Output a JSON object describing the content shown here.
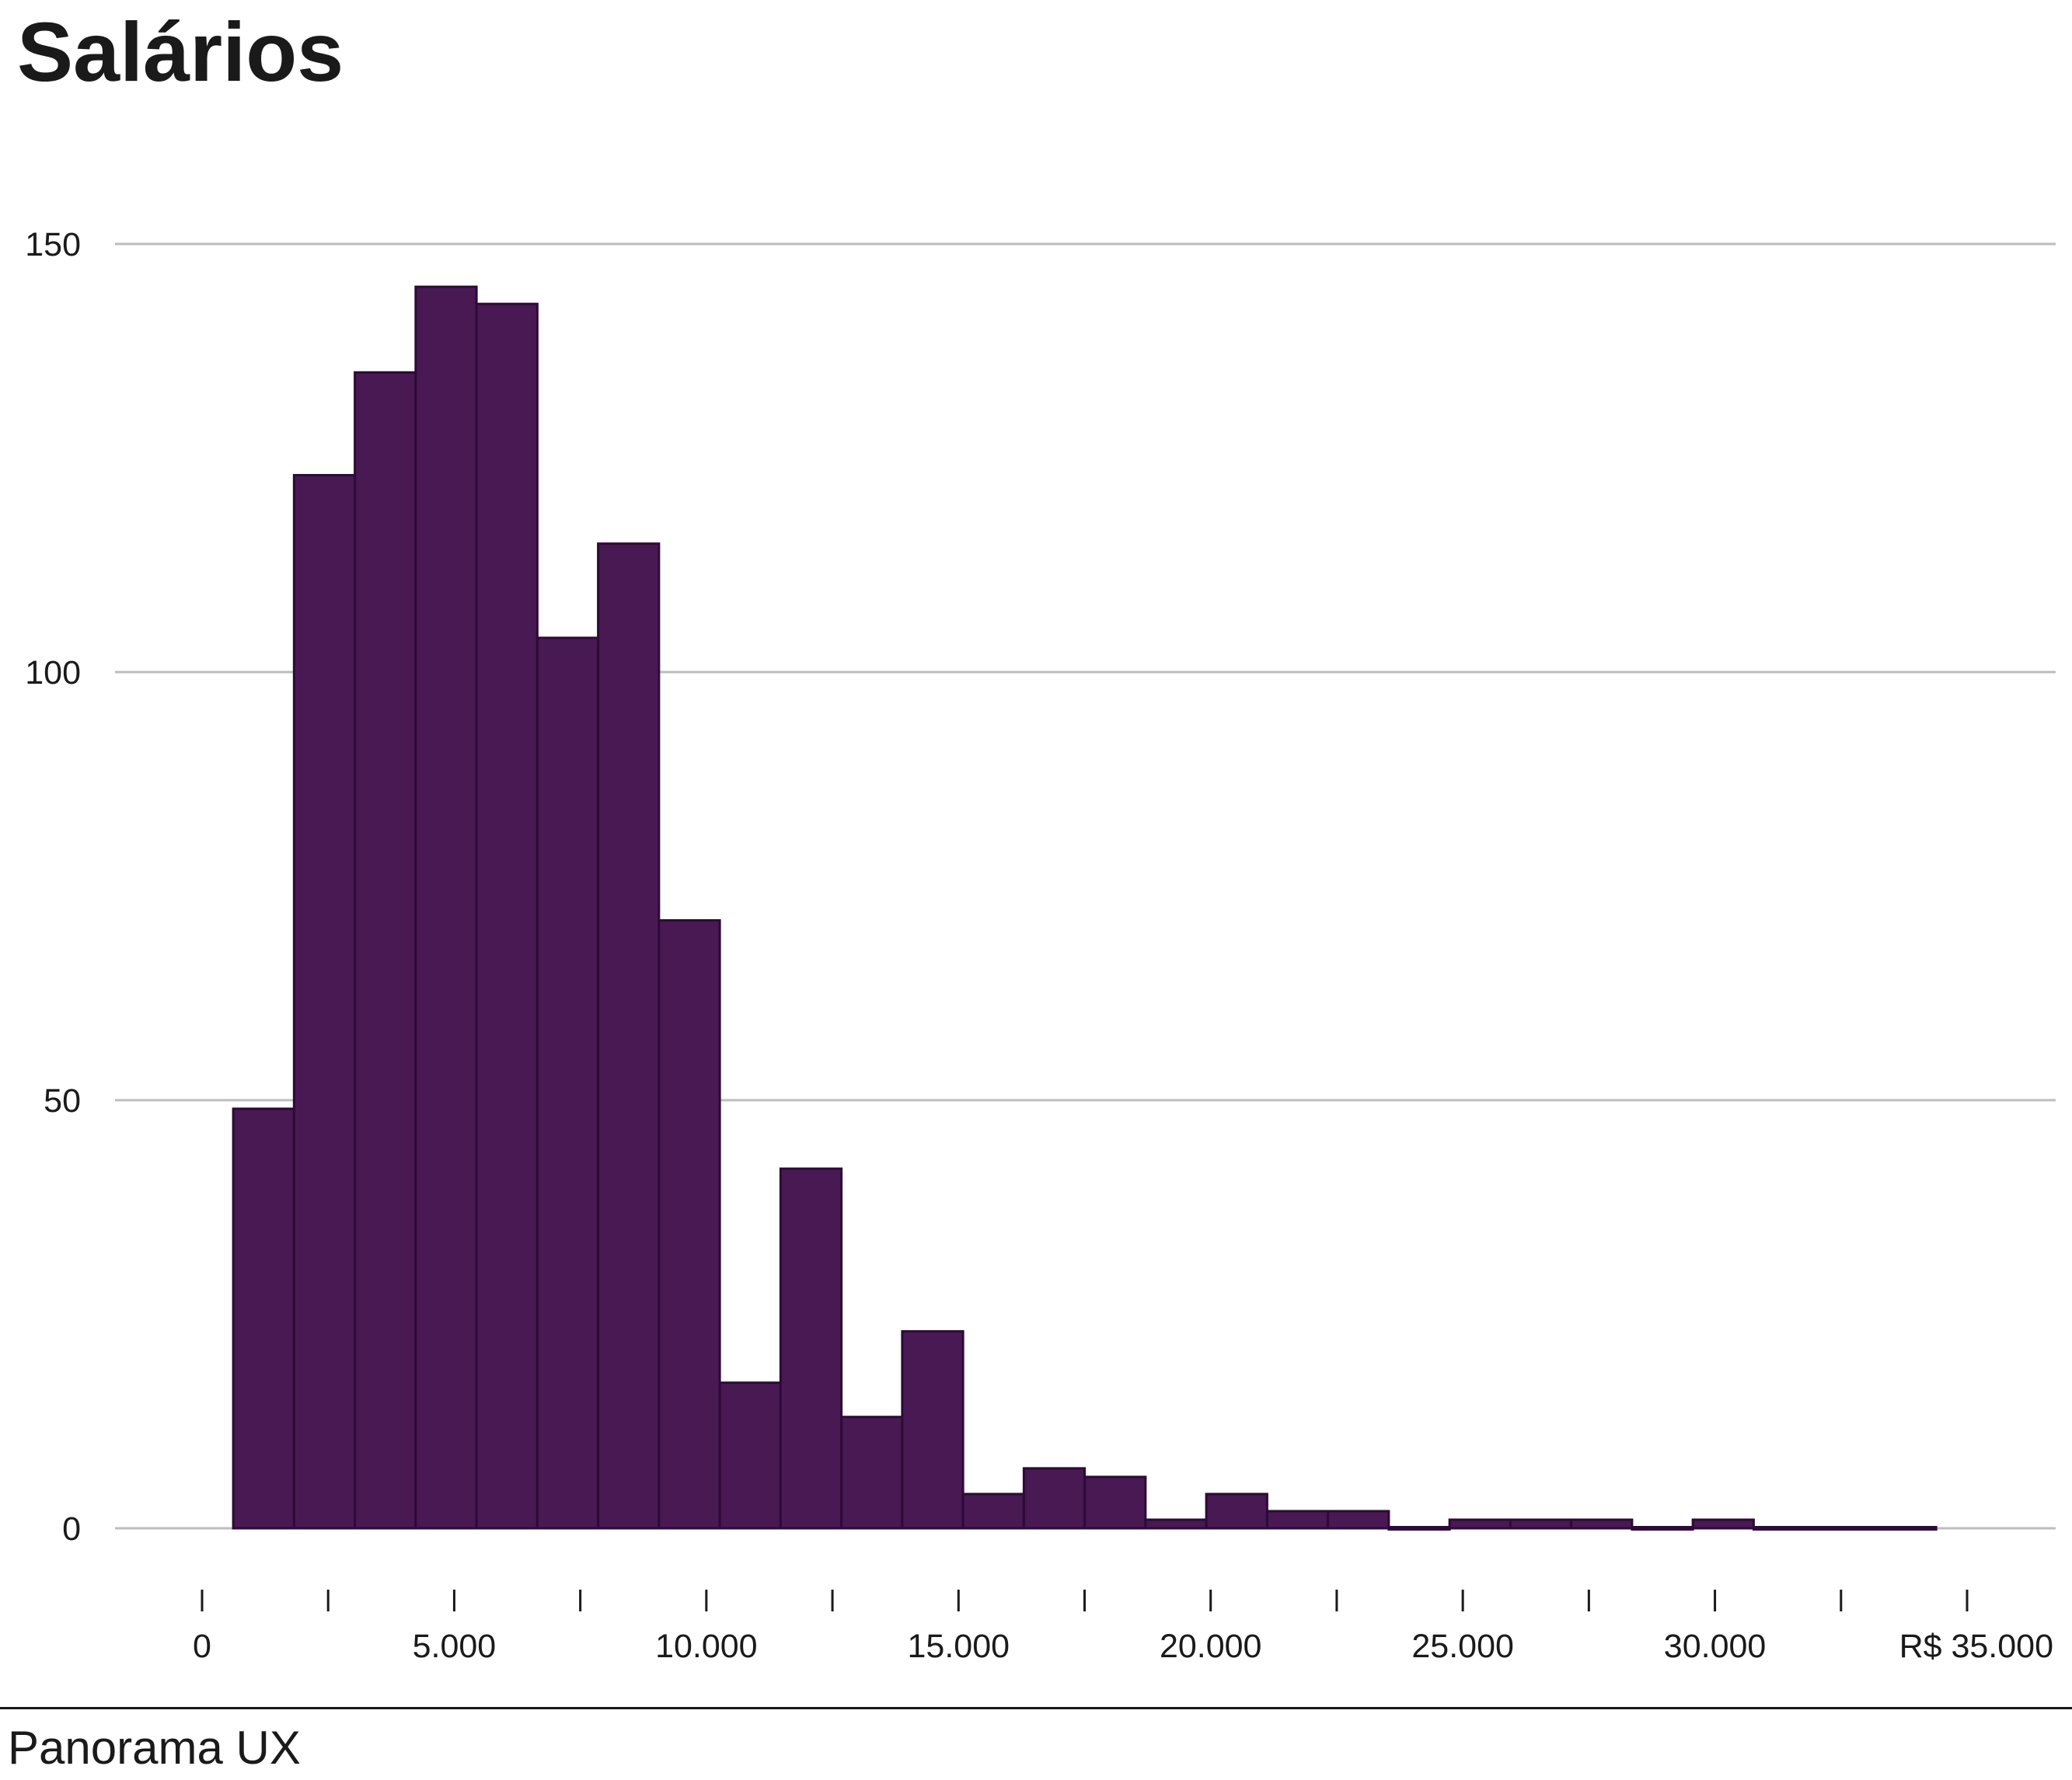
{
  "header": {
    "title": "Salários"
  },
  "footer": {
    "source": "Panorama UX"
  },
  "colors": {
    "bar_fill": "#481953",
    "bar_stroke": "#2e0a38",
    "grid": "#bdbdbd",
    "text": "#1a1a1a"
  },
  "chart_data": {
    "type": "bar",
    "title": "Salários",
    "xlabel": "",
    "ylabel": "",
    "xlim": [
      0,
      35000
    ],
    "ylim": [
      0,
      150
    ],
    "grid": true,
    "y_ticks": [
      0,
      50,
      100,
      150
    ],
    "y_tick_labels": [
      "0",
      "50",
      "100",
      "150"
    ],
    "x_ticks": [
      0,
      5000,
      10000,
      15000,
      20000,
      25000,
      30000,
      35000
    ],
    "x_tick_labels": [
      "0",
      "5.000",
      "10.000",
      "15.000",
      "20.000",
      "25.000",
      "30.000",
      "R$ 35.000"
    ],
    "x_minor_ticks": [
      2500,
      7500,
      12500,
      17500,
      22500,
      27500,
      32500
    ],
    "bin_width": 1206,
    "bin_start": 618,
    "values": [
      49,
      123,
      135,
      145,
      143,
      104,
      115,
      71,
      17,
      42,
      13,
      23,
      4,
      7,
      6,
      1,
      4,
      2,
      2,
      0,
      1,
      1,
      1,
      0,
      1,
      0,
      0,
      0
    ]
  }
}
